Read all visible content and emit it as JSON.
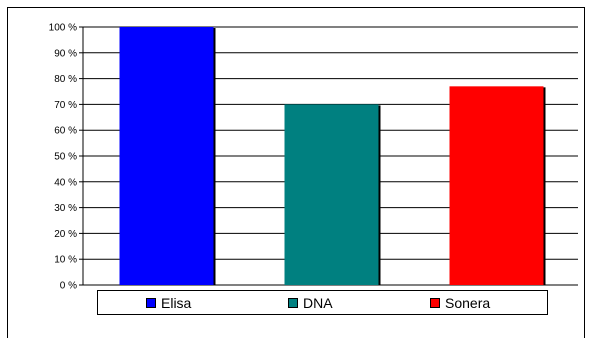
{
  "chart_data": {
    "type": "bar",
    "categories": [
      "Elisa",
      "DNA",
      "Sonera"
    ],
    "values": [
      100,
      70,
      77
    ],
    "colors": [
      "#0000ff",
      "#008080",
      "#ff0000"
    ],
    "ylim": [
      0,
      100
    ],
    "yticks": [
      "0 %",
      "10 %",
      "20 %",
      "30 %",
      "40 %",
      "50 %",
      "60 %",
      "70 %",
      "80 %",
      "90 %",
      "100 %"
    ],
    "grid": true,
    "legend_position": "bottom",
    "title": "",
    "xlabel": "",
    "ylabel": ""
  }
}
